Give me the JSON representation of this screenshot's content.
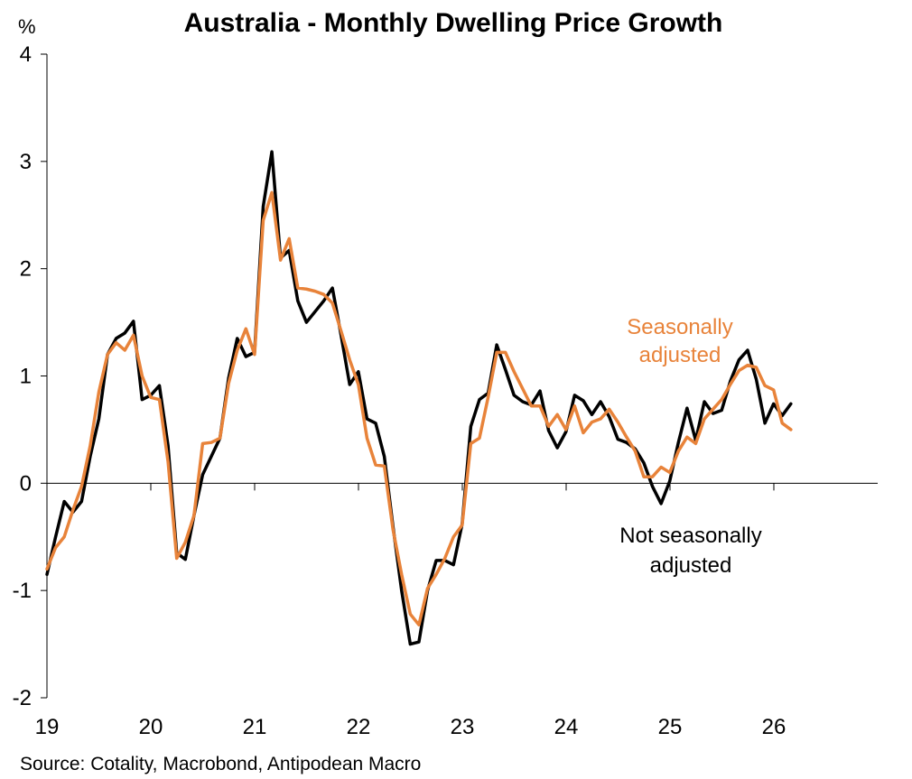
{
  "chart_data": {
    "type": "line",
    "title": "Australia - Monthly Dwelling Price Growth",
    "ylabel": "%",
    "ylim": [
      -2,
      4
    ],
    "yticks": [
      4,
      3,
      2,
      1,
      0,
      -1,
      -2
    ],
    "xlim": [
      19,
      27
    ],
    "xticks": [
      "19",
      "20",
      "21",
      "22",
      "23",
      "24",
      "25",
      "26"
    ],
    "source": "Source: Cotality, Macrobond, Antipodean Macro",
    "colors": {
      "nsa": "#000000",
      "sa": "#E8833A",
      "axis": "#000000"
    },
    "annotations": {
      "sa_line1": "Seasonally",
      "sa_line2": "adjusted",
      "nsa_line1": "Not seasonally",
      "nsa_line2": "adjusted"
    },
    "series": [
      {
        "key": "nsa",
        "x_start": 19,
        "step": 0.0833,
        "values": [
          -0.85,
          -0.5,
          -0.17,
          -0.27,
          -0.17,
          0.25,
          0.6,
          1.2,
          1.35,
          1.4,
          1.51,
          0.78,
          0.82,
          0.91,
          0.35,
          -0.65,
          -0.71,
          -0.3,
          0.08,
          0.25,
          0.42,
          0.98,
          1.35,
          1.18,
          1.22,
          2.58,
          3.09,
          2.1,
          2.17,
          1.7,
          1.5,
          1.6,
          1.7,
          1.82,
          1.38,
          0.92,
          1.04,
          0.6,
          0.56,
          0.25,
          -0.4,
          -1.0,
          -1.5,
          -1.48,
          -1.0,
          -0.72,
          -0.72,
          -0.76,
          -0.38,
          0.53,
          0.78,
          0.84,
          1.29,
          1.06,
          0.82,
          0.76,
          0.73,
          0.86,
          0.49,
          0.33,
          0.48,
          0.82,
          0.77,
          0.64,
          0.76,
          0.62,
          0.41,
          0.38,
          0.32,
          0.19,
          -0.03,
          -0.19,
          0.02,
          0.38,
          0.7,
          0.4,
          0.76,
          0.65,
          0.68,
          0.95,
          1.15,
          1.24,
          0.97,
          0.56,
          0.74,
          0.63,
          0.74
        ]
      },
      {
        "key": "sa",
        "x_start": 19,
        "step": 0.0833,
        "values": [
          -0.8,
          -0.6,
          -0.5,
          -0.25,
          -0.03,
          0.35,
          0.85,
          1.2,
          1.31,
          1.24,
          1.38,
          1.0,
          0.8,
          0.78,
          0.2,
          -0.7,
          -0.55,
          -0.3,
          0.37,
          0.38,
          0.42,
          0.93,
          1.24,
          1.44,
          1.2,
          2.45,
          2.71,
          2.08,
          2.28,
          1.82,
          1.81,
          1.79,
          1.76,
          1.68,
          1.42,
          1.15,
          0.92,
          0.42,
          0.17,
          0.16,
          -0.43,
          -0.85,
          -1.22,
          -1.32,
          -0.98,
          -0.85,
          -0.7,
          -0.5,
          -0.39,
          0.37,
          0.42,
          0.8,
          1.22,
          1.22,
          1.04,
          0.88,
          0.72,
          0.72,
          0.53,
          0.64,
          0.5,
          0.72,
          0.47,
          0.57,
          0.6,
          0.69,
          0.57,
          0.43,
          0.3,
          0.06,
          0.06,
          0.15,
          0.1,
          0.3,
          0.43,
          0.37,
          0.6,
          0.69,
          0.78,
          0.92,
          1.05,
          1.1,
          1.08,
          0.91,
          0.87,
          0.56,
          0.5
        ]
      }
    ]
  }
}
